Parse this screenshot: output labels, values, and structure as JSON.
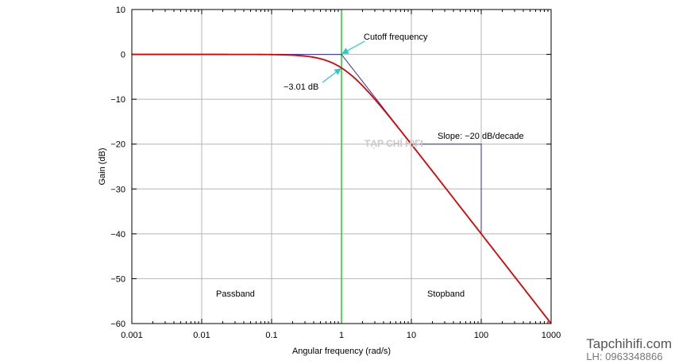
{
  "chart_data": {
    "type": "line",
    "xscale": "log",
    "xlim": [
      0.001,
      1000
    ],
    "ylim": [
      -60,
      10
    ],
    "x_ticks": [
      "0.001",
      "0.01",
      "0.1",
      "1",
      "10",
      "100",
      "1000"
    ],
    "y_ticks": [
      "10",
      "0",
      "−10",
      "−20",
      "−30",
      "−40",
      "−50",
      "−60"
    ],
    "xlabel": "Angular frequency (rad/s)",
    "ylabel": "Gain (dB)",
    "grid": true,
    "series": [
      {
        "kind": "response",
        "color": "#dd0000",
        "x": [
          0.001,
          0.01,
          0.1,
          0.3,
          0.5,
          1,
          2,
          3,
          5,
          10,
          30,
          100,
          300,
          1000
        ],
        "y": [
          0,
          0,
          -0.04,
          -0.37,
          -0.97,
          -3.01,
          -6.99,
          -10.0,
          -14.15,
          -20.04,
          -29.54,
          -40.0,
          -49.54,
          -60.0
        ]
      },
      {
        "kind": "asymptote",
        "color": "#2a2ab8",
        "x": [
          0.001,
          1,
          1000
        ],
        "y": [
          0,
          0,
          -60
        ]
      },
      {
        "kind": "slope-step",
        "color": "#2a2ab8",
        "x": [
          10,
          100,
          100
        ],
        "y": [
          -20,
          -20,
          -40
        ]
      }
    ],
    "vline": {
      "x": 1,
      "color": "#33cc33"
    },
    "annotations": [
      {
        "text": "Cutoff frequency",
        "point": [
          1,
          0
        ]
      },
      {
        "text": "−3.01 dB",
        "point": [
          1,
          -3.01
        ]
      },
      {
        "text": "Slope: −20 dB/decade"
      },
      {
        "text": "Passband"
      },
      {
        "text": "Stopband"
      }
    ],
    "arrow_color": "#22cccc"
  },
  "watermark": "TẠP CHÍ HIFI",
  "brand": {
    "name": "Tapchihifi.com",
    "phone": "LH: 0963348866"
  }
}
